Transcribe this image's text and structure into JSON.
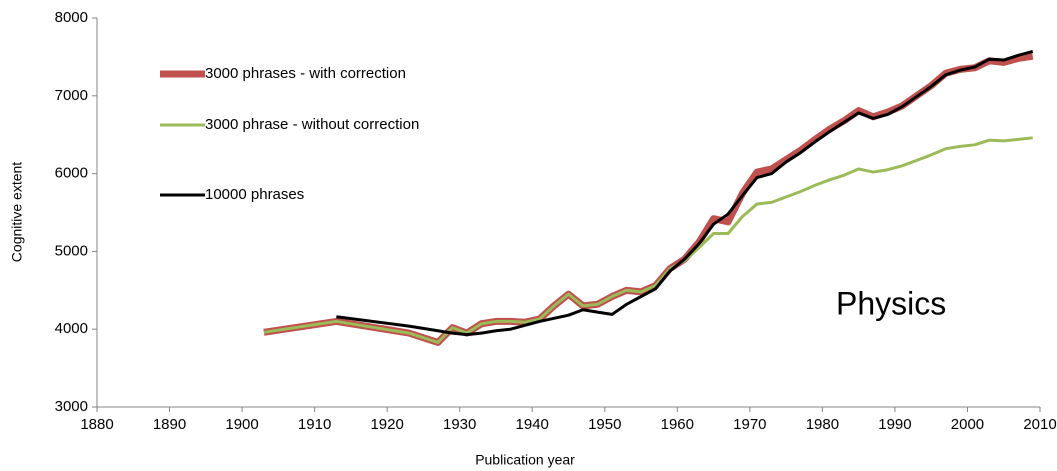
{
  "chart_data": {
    "type": "line",
    "x_label": "Publication year",
    "y_label": "Cognitive extent",
    "annotation": "Physics",
    "x": [
      1903,
      1913,
      1923,
      1927,
      1929,
      1931,
      1933,
      1935,
      1937,
      1939,
      1941,
      1943,
      1945,
      1947,
      1949,
      1951,
      1953,
      1955,
      1957,
      1959,
      1961,
      1963,
      1965,
      1967,
      1969,
      1971,
      1973,
      1975,
      1977,
      1979,
      1981,
      1983,
      1985,
      1987,
      1989,
      1991,
      1993,
      1995,
      1997,
      1999,
      2001,
      2003,
      2005,
      2007,
      2009
    ],
    "series": [
      {
        "name": "3000 phrases - with correction",
        "color": "#c0504d",
        "values": [
          3960,
          4100,
          3950,
          3830,
          4020,
          3950,
          4070,
          4100,
          4100,
          4090,
          4130,
          4300,
          4450,
          4300,
          4320,
          4420,
          4500,
          4480,
          4560,
          4780,
          4900,
          5120,
          5420,
          5380,
          5750,
          6020,
          6060,
          6180,
          6300,
          6440,
          6570,
          6680,
          6810,
          6730,
          6790,
          6870,
          7000,
          7130,
          7290,
          7340,
          7360,
          7450,
          7430,
          7480,
          7510
        ]
      },
      {
        "name": "3000 phrase - without correction",
        "color": "#9bbb59",
        "values": [
          3960,
          4100,
          3950,
          3830,
          4020,
          3950,
          4070,
          4100,
          4100,
          4090,
          4130,
          4300,
          4450,
          4300,
          4320,
          4420,
          4500,
          4480,
          4560,
          4780,
          4880,
          5050,
          5230,
          5230,
          5450,
          5610,
          5630,
          5700,
          5770,
          5850,
          5920,
          5980,
          6060,
          6020,
          6050,
          6100,
          6170,
          6240,
          6320,
          6350,
          6370,
          6430,
          6420,
          6440,
          6460
        ]
      },
      {
        "name": "10000 phrases",
        "color": "#000000",
        "values": [
          null,
          4160,
          4040,
          3980,
          3950,
          3930,
          3950,
          3980,
          4000,
          4050,
          4100,
          4140,
          4180,
          4250,
          4220,
          4190,
          4320,
          4420,
          4520,
          4750,
          4900,
          5100,
          5350,
          5480,
          5720,
          5950,
          6000,
          6150,
          6270,
          6410,
          6540,
          6660,
          6780,
          6710,
          6760,
          6860,
          6990,
          7120,
          7270,
          7330,
          7370,
          7470,
          7460,
          7520,
          7570
        ]
      }
    ],
    "xlim": [
      1880,
      2010
    ],
    "xticks": [
      1880,
      1890,
      1900,
      1910,
      1920,
      1930,
      1940,
      1950,
      1960,
      1970,
      1980,
      1990,
      2000,
      2010
    ],
    "ylim": [
      3000,
      8000
    ],
    "yticks": [
      3000,
      4000,
      5000,
      6000,
      7000,
      8000
    ],
    "grid": false,
    "legend": "top-left"
  }
}
